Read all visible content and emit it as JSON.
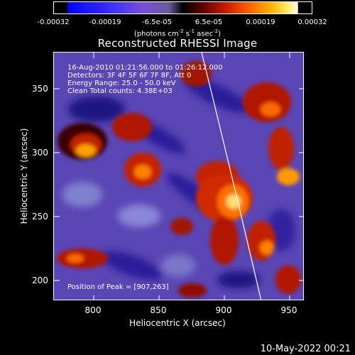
{
  "colorbar": {
    "ticks": [
      "-0.00032",
      "-0.00019",
      "-6.5e-05",
      "6.5e-05",
      "0.00019",
      "0.00032"
    ],
    "units": {
      "text": "(photons cm",
      "sup1": "-2",
      "mid1": " s",
      "sup2": "-1",
      "mid2": " asec",
      "sup3": "-2",
      "end": ")"
    }
  },
  "title": "Reconstructed RHESSI Image",
  "info": {
    "line1": "16-Aug-2010 01:21:56.000 to 01:26:12.000",
    "line2": "Detectors: 3F 4F 5F 6F 7F 8F, Att 0",
    "line3": "Energy Range: 25.0 - 50.0 keV",
    "line4": "Clean     Total counts: 4.38E+03",
    "peak": "Position of Peak = [907,263]"
  },
  "axes": {
    "xlabel": "Heliocentric X (arcsec)",
    "ylabel": "Heliocentric Y (arcsec)",
    "xrange": [
      768,
      960
    ],
    "yrange": [
      182,
      378
    ],
    "xticks": [
      "800",
      "850",
      "900",
      "950"
    ],
    "yticks": [
      "350",
      "300",
      "250",
      "200"
    ]
  },
  "peak_position": [
    907,
    263
  ],
  "timestamp": "10-May-2022 00:21"
}
